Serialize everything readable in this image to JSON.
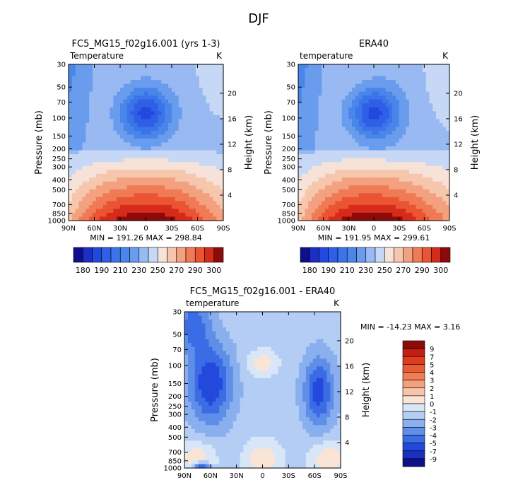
{
  "figure_title": "DJF",
  "chart_data": [
    {
      "type": "heatmap",
      "title": "FC5_MG15_f02g16.001 (yrs 1-3)",
      "subtitle_left": "Temperature",
      "subtitle_right": "K",
      "xlabel": "",
      "ylabel": "Pressure (mb)",
      "ylabel_right": "Height (km)",
      "x_ticks": [
        "90N",
        "60N",
        "30N",
        "0",
        "30S",
        "60S",
        "90S"
      ],
      "y_ticks": [
        "30",
        "50",
        "70",
        "100",
        "150",
        "200",
        "250",
        "300",
        "400",
        "500",
        "700",
        "850",
        "1000"
      ],
      "y_ticks_right": [
        "20",
        "16",
        "12",
        "8",
        "4"
      ],
      "stats": "MIN = 191.26   MAX = 298.84",
      "min": 191.26,
      "max": 298.84,
      "units": "K",
      "colorbar_labels": [
        "180",
        "190",
        "210",
        "230",
        "250",
        "270",
        "290",
        "300"
      ],
      "colorbar_levels": 16
    },
    {
      "type": "heatmap",
      "title": "ERA40",
      "subtitle_left": "temperature",
      "subtitle_right": "K",
      "xlabel": "",
      "ylabel": "Pressure (mb)",
      "ylabel_right": "Height (km)",
      "x_ticks": [
        "90N",
        "60N",
        "30N",
        "0",
        "30S",
        "60S",
        "90S"
      ],
      "y_ticks": [
        "30",
        "50",
        "70",
        "100",
        "150",
        "200",
        "250",
        "300",
        "400",
        "500",
        "700",
        "850",
        "1000"
      ],
      "y_ticks_right": [
        "20",
        "16",
        "12",
        "8",
        "4"
      ],
      "stats": "MIN = 191.95   MAX = 299.61",
      "min": 191.95,
      "max": 299.61,
      "units": "K",
      "colorbar_labels": [
        "180",
        "190",
        "210",
        "230",
        "250",
        "270",
        "290",
        "300"
      ],
      "colorbar_levels": 16
    },
    {
      "type": "heatmap",
      "title": "FC5_MG15_f02g16.001 - ERA40",
      "subtitle_left": "temperature",
      "subtitle_right": "K",
      "xlabel": "",
      "ylabel": "Pressure (mb)",
      "ylabel_right": "Height (km)",
      "x_ticks": [
        "90N",
        "60N",
        "30N",
        "0",
        "30S",
        "60S",
        "90S"
      ],
      "y_ticks": [
        "30",
        "50",
        "70",
        "100",
        "150",
        "200",
        "250",
        "300",
        "400",
        "500",
        "700",
        "850",
        "1000"
      ],
      "y_ticks_right": [
        "20",
        "16",
        "12",
        "8",
        "4"
      ],
      "stats": "MIN = -14.23   MAX =    3.16",
      "min": -14.23,
      "max": 3.16,
      "units": "K",
      "colorbar_labels": [
        "9",
        "7",
        "5",
        "4",
        "3",
        "2",
        "1",
        "0",
        "-1",
        "-2",
        "-3",
        "-4",
        "-5",
        "-7",
        "-9"
      ],
      "colorbar_levels": 16
    }
  ],
  "colors": {
    "abs": [
      "#0f0f8c",
      "#1b2fc4",
      "#2447dd",
      "#2e5fe6",
      "#3b74e8",
      "#4a86ea",
      "#6a9cee",
      "#98b9f2",
      "#c6d8f6",
      "#f6e2d8",
      "#f6c6ad",
      "#f3a17f",
      "#ef7a55",
      "#ea5433",
      "#d62b1a",
      "#8c0a0a"
    ],
    "diff": [
      "#8c0a0a",
      "#c41e12",
      "#e03b1c",
      "#ea5a33",
      "#f07e55",
      "#f4a07e",
      "#f6c4a8",
      "#fae4d6",
      "#d8e6f8",
      "#b4cdf4",
      "#8aafee",
      "#5f8ee8",
      "#3a6ce6",
      "#2348dc",
      "#1a2ec0",
      "#0f0f8c"
    ]
  }
}
